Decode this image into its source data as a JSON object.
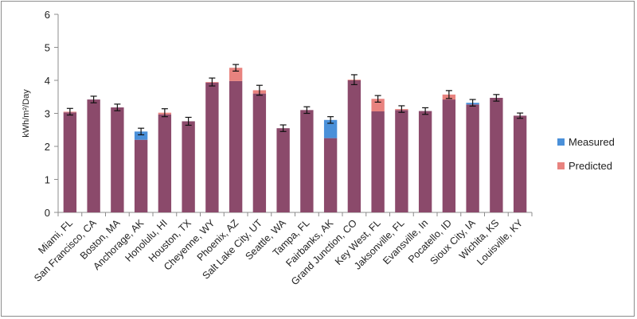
{
  "chart_data": {
    "type": "bar",
    "stacked": true,
    "ylabel": "kWh/m²/Day",
    "ylim": [
      0,
      6
    ],
    "yticks": [
      0,
      1,
      2,
      3,
      4,
      5,
      6
    ],
    "grid": false,
    "legend_position": "right",
    "categories": [
      "Miami, FL",
      "San Francisco, CA",
      "Boston, MA",
      "Anchorage, AK",
      "Honolulu, HI",
      "Houston, TX",
      "Cheyenne, WY",
      "Phoenix, AZ",
      "Salt Lake City, UT",
      "Seattle, WA",
      "Tampa, FL",
      "Fairbanks, AK",
      "Grand Junction, CO",
      "Key West, FL",
      "Jaksonville, FL",
      "Evansville, In",
      "Pocatello, ID",
      "Sioux City, IA",
      "Wichita, KS",
      "Louisville, KY"
    ],
    "base": [
      3.03,
      3.42,
      3.18,
      2.2,
      2.97,
      2.76,
      3.93,
      3.98,
      3.6,
      2.55,
      3.1,
      2.25,
      4.0,
      3.06,
      3.1,
      3.07,
      3.42,
      3.27,
      3.47,
      2.93
    ],
    "series": [
      {
        "name": "Measured",
        "color": "#4a90d9",
        "values": [
          0,
          0,
          0,
          0.25,
          0,
          0,
          0,
          0,
          0,
          0,
          0,
          0.55,
          0,
          0,
          0,
          0,
          0,
          0.05,
          0,
          0
        ]
      },
      {
        "name": "Predicted",
        "color": "#e8837f",
        "values": [
          0.02,
          0.0,
          0.0,
          0,
          0.05,
          0,
          0.02,
          0.4,
          0.1,
          0,
          0,
          0,
          0.02,
          0.38,
          0.03,
          0.0,
          0.15,
          0,
          0,
          0
        ]
      }
    ],
    "error_bars": [
      0.1,
      0.1,
      0.1,
      0.1,
      0.12,
      0.12,
      0.12,
      0.1,
      0.15,
      0.1,
      0.1,
      0.1,
      0.15,
      0.1,
      0.1,
      0.1,
      0.12,
      0.1,
      0.1,
      0.08
    ],
    "base_color": "#8b4a6b"
  }
}
